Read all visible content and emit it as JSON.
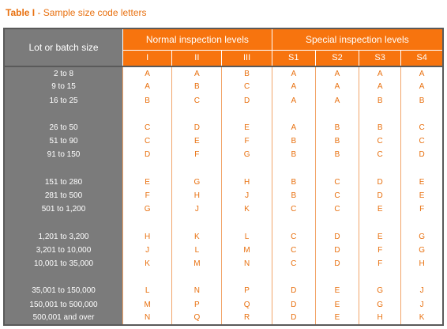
{
  "caption": {
    "bold": "Table I",
    "rest": " - Sample size code letters"
  },
  "header": {
    "lot_label": "Lot or batch size",
    "normal_label": "Normal inspection levels",
    "special_label": "Special inspection levels",
    "levels": [
      "I",
      "II",
      "III",
      "S1",
      "S2",
      "S3",
      "S4"
    ]
  },
  "groups": [
    {
      "rows": [
        {
          "lot": "2 to 8",
          "codes": [
            "A",
            "A",
            "B",
            "A",
            "A",
            "A",
            "A"
          ]
        },
        {
          "lot": "9 to 15",
          "codes": [
            "A",
            "B",
            "C",
            "A",
            "A",
            "A",
            "A"
          ]
        },
        {
          "lot": "16 to 25",
          "codes": [
            "B",
            "C",
            "D",
            "A",
            "A",
            "B",
            "B"
          ]
        }
      ]
    },
    {
      "rows": [
        {
          "lot": "26 to 50",
          "codes": [
            "C",
            "D",
            "E",
            "A",
            "B",
            "B",
            "C"
          ]
        },
        {
          "lot": "51 to 90",
          "codes": [
            "C",
            "E",
            "F",
            "B",
            "B",
            "C",
            "C"
          ]
        },
        {
          "lot": "91 to 150",
          "codes": [
            "D",
            "F",
            "G",
            "B",
            "B",
            "C",
            "D"
          ]
        }
      ]
    },
    {
      "rows": [
        {
          "lot": "151 to 280",
          "codes": [
            "E",
            "G",
            "H",
            "B",
            "C",
            "D",
            "E"
          ]
        },
        {
          "lot": "281 to 500",
          "codes": [
            "F",
            "H",
            "J",
            "B",
            "C",
            "D",
            "E"
          ]
        },
        {
          "lot": "501 to 1,200",
          "codes": [
            "G",
            "J",
            "K",
            "C",
            "C",
            "E",
            "F"
          ]
        }
      ]
    },
    {
      "rows": [
        {
          "lot": "1,201 to 3,200",
          "codes": [
            "H",
            "K",
            "L",
            "C",
            "D",
            "E",
            "G"
          ]
        },
        {
          "lot": "3,201 to 10,000",
          "codes": [
            "J",
            "L",
            "M",
            "C",
            "D",
            "F",
            "G"
          ]
        },
        {
          "lot": "10,001 to 35,000",
          "codes": [
            "K",
            "M",
            "N",
            "C",
            "D",
            "F",
            "H"
          ]
        }
      ]
    },
    {
      "rows": [
        {
          "lot": "35,001 to 150,000",
          "codes": [
            "L",
            "N",
            "P",
            "D",
            "E",
            "G",
            "J"
          ]
        },
        {
          "lot": "150,001 to 500,000",
          "codes": [
            "M",
            "P",
            "Q",
            "D",
            "E",
            "G",
            "J"
          ]
        },
        {
          "lot": "500,001 and over",
          "codes": [
            "N",
            "Q",
            "R",
            "D",
            "E",
            "H",
            "K"
          ]
        }
      ]
    }
  ]
}
